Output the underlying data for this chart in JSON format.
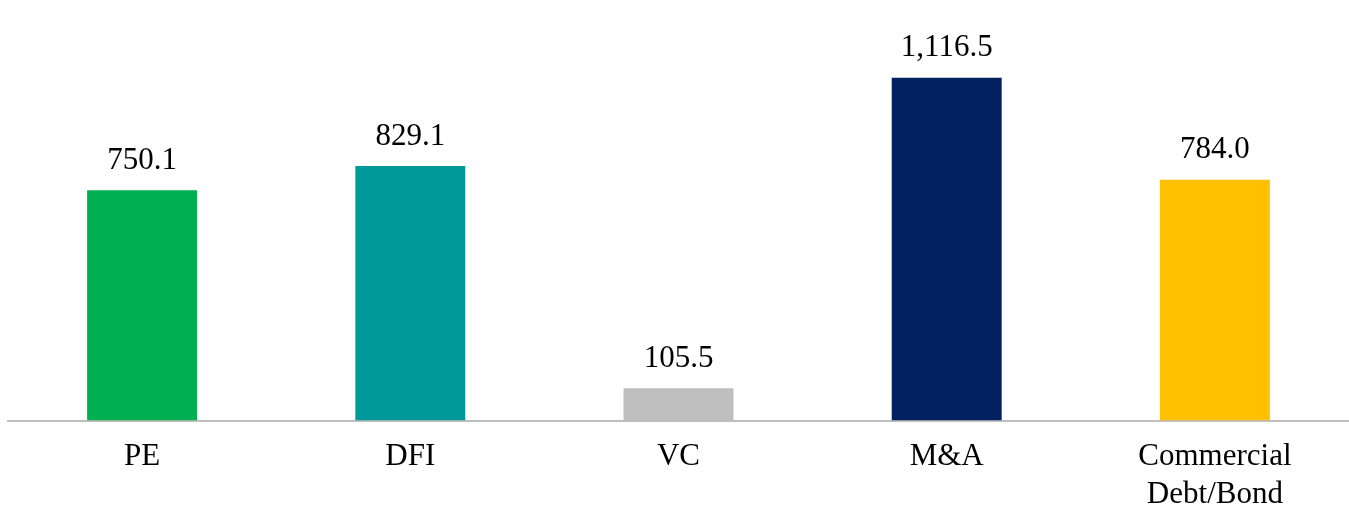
{
  "chart_data": {
    "type": "bar",
    "categories": [
      "PE",
      "DFI",
      "VC",
      "M&A",
      "Commercial Debt/Bond"
    ],
    "values": [
      750.1,
      829.1,
      105.5,
      1116.5,
      784.0
    ],
    "colors": [
      "#00b050",
      "#009999",
      "#bfbfbf",
      "#002060",
      "#ffc000"
    ],
    "value_labels": [
      "750.1",
      "829.1",
      "105.5",
      "1,116.5",
      "784.0"
    ],
    "relative": false,
    "grid": false,
    "legend": false
  }
}
